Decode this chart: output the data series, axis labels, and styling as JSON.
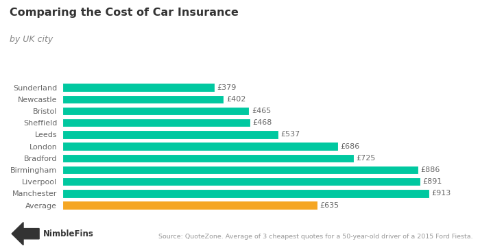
{
  "title": "Comparing the Cost of Car Insurance",
  "subtitle": "by UK city",
  "categories": [
    "Sunderland",
    "Newcastle",
    "Bristol",
    "Sheffield",
    "Leeds",
    "London",
    "Bradford",
    "Birmingham",
    "Liverpool",
    "Manchester",
    "Average"
  ],
  "values": [
    379,
    402,
    465,
    468,
    537,
    686,
    725,
    886,
    891,
    913,
    635
  ],
  "bar_colors": [
    "#00C8A0",
    "#00C8A0",
    "#00C8A0",
    "#00C8A0",
    "#00C8A0",
    "#00C8A0",
    "#00C8A0",
    "#00C8A0",
    "#00C8A0",
    "#00C8A0",
    "#F5A623"
  ],
  "teal_color": "#00C8A0",
  "gold_color": "#F5A623",
  "label_prefix": "£",
  "source_text": "Source: QuoteZone. Average of 3 cheapest quotes for a 50-year-old driver of a 2015 Ford Fiesta.",
  "logo_text": "NimbleFins",
  "xlim": [
    0,
    980
  ],
  "background_color": "#ffffff",
  "title_fontsize": 11.5,
  "subtitle_fontsize": 9,
  "label_fontsize": 8,
  "tick_fontsize": 8,
  "source_fontsize": 6.8,
  "bar_height": 0.72,
  "title_color": "#333333",
  "subtitle_color": "#888888",
  "tick_color": "#666666",
  "label_color": "#666666"
}
